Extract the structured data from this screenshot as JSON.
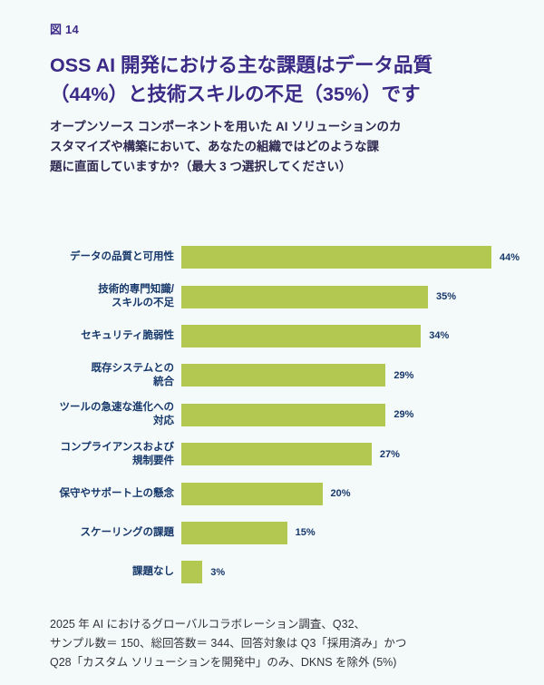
{
  "page": {
    "figure_label": "図 14",
    "title": "OSS AI 開発における主な課題はデータ品質\n（44%）と技術スキルの不足（35%）です",
    "subtitle": "オープンソース コンポーネントを用いた AI ソリューションのカ\nスタマイズや構築において、あなたの組織ではどのような課\n題に直面していますか?（最大 3 つ選択してください）",
    "footnote": "2025 年 AI におけるグローバルコラボレーション調査、Q32、\nサンプル数＝ 150、総回答数＝ 344、回答対象は Q3「採用済み」かつ\nQ28「カスタム ソリューションを開発中」のみ、DKNS を除外 (5%)"
  },
  "colors": {
    "background": "#F4F9FA",
    "title_purple": "#3B2A86",
    "subtitle_dark": "#2F2851",
    "bar_green": "#B3C851",
    "label_navy": "#16386B",
    "footnote_gray": "#33333B"
  },
  "chart_data": {
    "type": "bar",
    "orientation": "horizontal",
    "title": "OSS AI 開発における主な課題はデータ品質（44%）と技術スキルの不足（35%）です",
    "xlabel": "",
    "ylabel": "",
    "xlim": [
      0,
      44
    ],
    "grid": false,
    "legend": null,
    "categories": [
      "データの品質と可用性",
      "技術的専門知識/\nスキルの不足",
      "セキュリティ脆弱性",
      "既存システムとの\n統合",
      "ツールの急速な進化への\n対応",
      "コンプライアンスおよび\n規制要件",
      "保守やサポート上の懸念",
      "スケーリングの課題",
      "課題なし"
    ],
    "values": [
      44,
      35,
      34,
      29,
      29,
      27,
      20,
      15,
      3
    ],
    "value_labels": [
      "44%",
      "35%",
      "34%",
      "29%",
      "29%",
      "27%",
      "20%",
      "15%",
      "3%"
    ]
  }
}
